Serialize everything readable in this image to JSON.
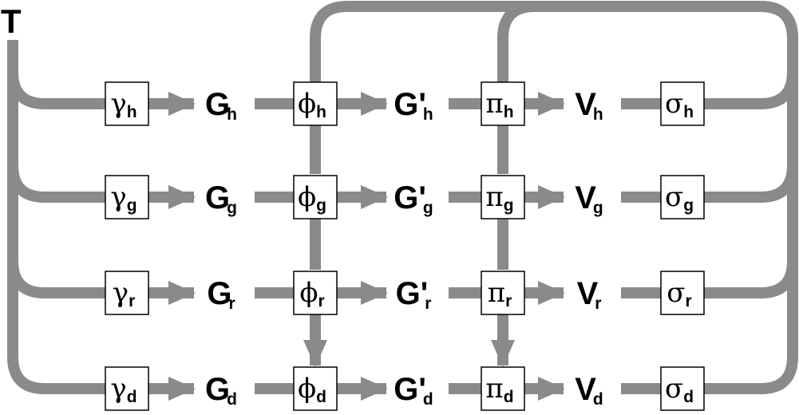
{
  "root_label": "T",
  "wire_color": "#8a8a8a",
  "rows": [
    {
      "cells": [
        {
          "kind": "op",
          "symbol": "γ",
          "sub": "h"
        },
        {
          "kind": "node",
          "symbol": "G",
          "sub": "h"
        },
        {
          "kind": "op",
          "symbol": "ϕ",
          "sub": "h"
        },
        {
          "kind": "node",
          "symbol": "G'",
          "sub": "h"
        },
        {
          "kind": "op",
          "symbol": "π",
          "sub": "h"
        },
        {
          "kind": "node",
          "symbol": "V",
          "sub": "h"
        },
        {
          "kind": "op",
          "symbol": "σ",
          "sub": "h"
        }
      ]
    },
    {
      "cells": [
        {
          "kind": "op",
          "symbol": "γ",
          "sub": "g"
        },
        {
          "kind": "node",
          "symbol": "G",
          "sub": "g"
        },
        {
          "kind": "op",
          "symbol": "ϕ",
          "sub": "g"
        },
        {
          "kind": "node",
          "symbol": "G'",
          "sub": "g"
        },
        {
          "kind": "op",
          "symbol": "π",
          "sub": "g"
        },
        {
          "kind": "node",
          "symbol": "V",
          "sub": "g"
        },
        {
          "kind": "op",
          "symbol": "σ",
          "sub": "g"
        }
      ]
    },
    {
      "cells": [
        {
          "kind": "op",
          "symbol": "γ",
          "sub": "r"
        },
        {
          "kind": "node",
          "symbol": "G",
          "sub": "r"
        },
        {
          "kind": "op",
          "symbol": "ϕ",
          "sub": "r"
        },
        {
          "kind": "node",
          "symbol": "G'",
          "sub": "r"
        },
        {
          "kind": "op",
          "symbol": "π",
          "sub": "r"
        },
        {
          "kind": "node",
          "symbol": "V",
          "sub": "r"
        },
        {
          "kind": "op",
          "symbol": "σ",
          "sub": "r"
        }
      ]
    },
    {
      "cells": [
        {
          "kind": "op",
          "symbol": "γ",
          "sub": "d"
        },
        {
          "kind": "node",
          "symbol": "G",
          "sub": "d"
        },
        {
          "kind": "op",
          "symbol": "ϕ",
          "sub": "d"
        },
        {
          "kind": "node",
          "symbol": "G'",
          "sub": "d"
        },
        {
          "kind": "op",
          "symbol": "π",
          "sub": "d"
        },
        {
          "kind": "node",
          "symbol": "V",
          "sub": "d"
        },
        {
          "kind": "op",
          "symbol": "σ",
          "sub": "d"
        }
      ]
    }
  ]
}
